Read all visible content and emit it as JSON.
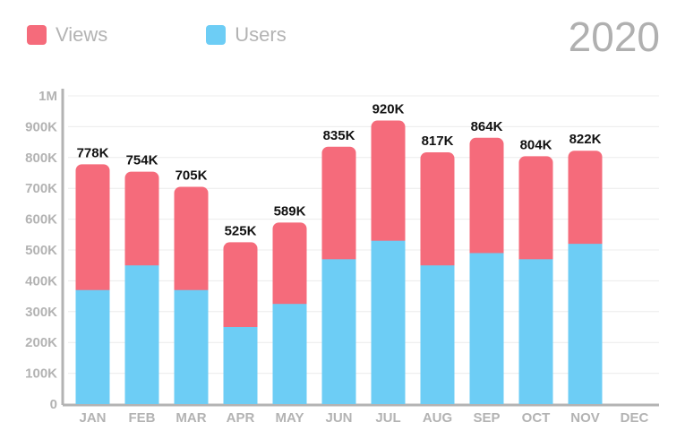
{
  "year_label": "2020",
  "colors": {
    "views": "#f56b7b",
    "users": "#6dcdf5",
    "axis": "#b3b3b3",
    "grid": "#ececec"
  },
  "chart_data": {
    "type": "bar",
    "stacked": true,
    "title": "2020",
    "categories": [
      "JAN",
      "FEB",
      "MAR",
      "APR",
      "MAY",
      "JUN",
      "JUL",
      "AUG",
      "SEP",
      "OCT",
      "NOV",
      "DEC"
    ],
    "series": [
      {
        "name": "Users",
        "color": "#6dcdf5",
        "values": [
          370000,
          450000,
          370000,
          250000,
          325000,
          470000,
          530000,
          450000,
          490000,
          470000,
          520000,
          null
        ]
      },
      {
        "name": "Views",
        "color": "#f56b7b",
        "values": [
          408000,
          304000,
          335000,
          275000,
          264000,
          365000,
          390000,
          367000,
          374000,
          334000,
          302000,
          null
        ]
      }
    ],
    "totals": [
      778000,
      754000,
      705000,
      525000,
      589000,
      835000,
      920000,
      817000,
      864000,
      804000,
      822000,
      null
    ],
    "total_labels": [
      "778K",
      "754K",
      "705K",
      "525K",
      "589K",
      "835K",
      "920K",
      "817K",
      "864K",
      "804K",
      "822K",
      ""
    ],
    "y_ticks": [
      0,
      100000,
      200000,
      300000,
      400000,
      500000,
      600000,
      700000,
      800000,
      900000,
      1000000
    ],
    "y_tick_labels": [
      "0",
      "100K",
      "200K",
      "300K",
      "400K",
      "500K",
      "600K",
      "700K",
      "800K",
      "900K",
      "1M"
    ],
    "ylim": [
      0,
      1000000
    ],
    "grid": true,
    "legend_position": "top-left"
  }
}
